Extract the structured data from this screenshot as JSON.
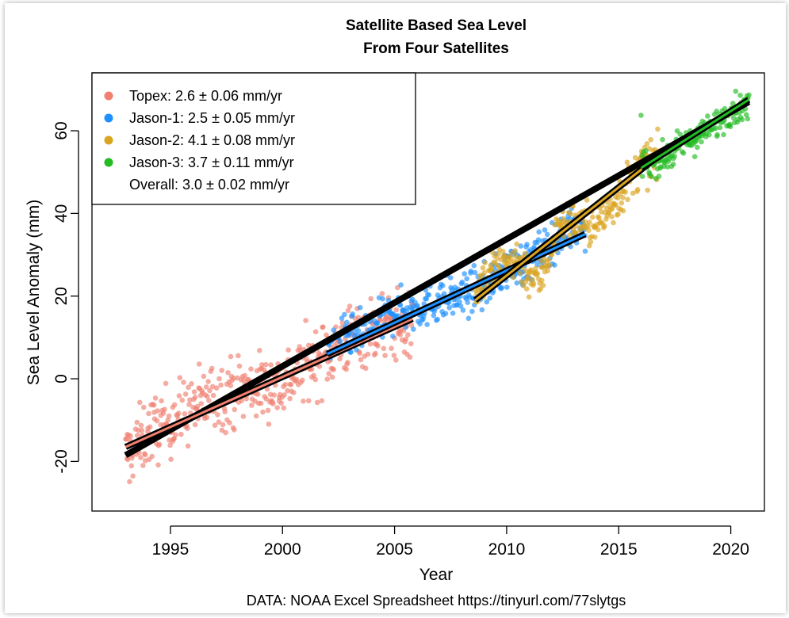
{
  "chart_data": {
    "type": "scatter",
    "title": "Satellite Based Sea Level",
    "subtitle": "From Four Satellites",
    "xlabel": "Year",
    "ylabel": "Sea Level Anomaly (mm)",
    "source": "DATA: NOAA Excel Spreadsheet https://tinyurl.com/77slytgs",
    "xlim": [
      1991.5,
      2021.5
    ],
    "ylim": [
      -32,
      74
    ],
    "x_ticks": [
      1995,
      2000,
      2005,
      2010,
      2015,
      2020
    ],
    "x_tick_labels": [
      "1995",
      "2000",
      "2005",
      "2010",
      "2015",
      "2020"
    ],
    "y_ticks": [
      -20,
      0,
      20,
      40,
      60
    ],
    "y_tick_labels": [
      "-20",
      "0",
      "20",
      "40",
      "60"
    ],
    "grid": false,
    "legend_position": "top-left",
    "series": [
      {
        "name": "Topex",
        "legend_label": "Topex:   2.6 ± 0.06 mm/yr",
        "color": "#F08070",
        "x_range": [
          1993.0,
          2005.8
        ],
        "trend_line": [
          [
            1993.0,
            -16.5
          ],
          [
            2005.8,
            14.5
          ]
        ],
        "profile": [
          [
            1993.0,
            -19
          ],
          [
            1994.0,
            -13
          ],
          [
            1995.0,
            -10
          ],
          [
            1996.0,
            -7
          ],
          [
            1997.0,
            -4
          ],
          [
            1998.0,
            -3
          ],
          [
            1999.0,
            -2
          ],
          [
            2000.0,
            -1
          ],
          [
            2001.0,
            3
          ],
          [
            2002.0,
            6
          ],
          [
            2003.0,
            10
          ],
          [
            2004.0,
            12
          ],
          [
            2005.0,
            13
          ],
          [
            2005.8,
            12
          ]
        ]
      },
      {
        "name": "Jason-1",
        "legend_label": "Jason-1:   2.5 ± 0.05 mm/yr",
        "color": "#1E90FF",
        "x_range": [
          2002.0,
          2013.5
        ],
        "trend_line": [
          [
            2002.0,
            6.0
          ],
          [
            2013.5,
            35.0
          ]
        ],
        "profile": [
          [
            2002.0,
            8
          ],
          [
            2003.0,
            10
          ],
          [
            2004.0,
            12
          ],
          [
            2005.0,
            16
          ],
          [
            2006.0,
            17
          ],
          [
            2007.0,
            19
          ],
          [
            2008.0,
            20
          ],
          [
            2009.0,
            22
          ],
          [
            2010.0,
            27
          ],
          [
            2011.0,
            28
          ],
          [
            2012.0,
            33
          ],
          [
            2013.0,
            37
          ],
          [
            2013.5,
            36
          ]
        ]
      },
      {
        "name": "Jason-2",
        "legend_label": "Jason-2:   4.1 ± 0.08 mm/yr",
        "color": "#DAA520",
        "x_range": [
          2008.6,
          2016.8
        ],
        "trend_line": [
          [
            2008.6,
            19.0
          ],
          [
            2016.8,
            54.0
          ]
        ],
        "profile": [
          [
            2008.6,
            22
          ],
          [
            2009.5,
            27
          ],
          [
            2010.5,
            29
          ],
          [
            2011.0,
            25
          ],
          [
            2011.5,
            24
          ],
          [
            2012.0,
            32
          ],
          [
            2012.5,
            38
          ],
          [
            2013.0,
            38
          ],
          [
            2014.0,
            37
          ],
          [
            2015.0,
            44
          ],
          [
            2016.0,
            52
          ],
          [
            2016.8,
            53
          ]
        ]
      },
      {
        "name": "Jason-3",
        "legend_label": "Jason-3:   3.7 ± 0.11 mm/yr",
        "color": "#22BB22",
        "x_range": [
          2016.0,
          2020.8
        ],
        "trend_line": [
          [
            2016.0,
            51.0
          ],
          [
            2020.8,
            67.5
          ]
        ],
        "profile": [
          [
            2016.0,
            52
          ],
          [
            2017.0,
            53
          ],
          [
            2018.0,
            57
          ],
          [
            2019.0,
            60
          ],
          [
            2020.0,
            65
          ],
          [
            2020.8,
            66
          ]
        ]
      }
    ],
    "overall": {
      "legend_label": "Overall:   3.0 ± 0.02 mm/yr",
      "trend_line": [
        [
          1993.0,
          -18.5
        ],
        [
          2020.8,
          67.0
        ]
      ]
    }
  }
}
